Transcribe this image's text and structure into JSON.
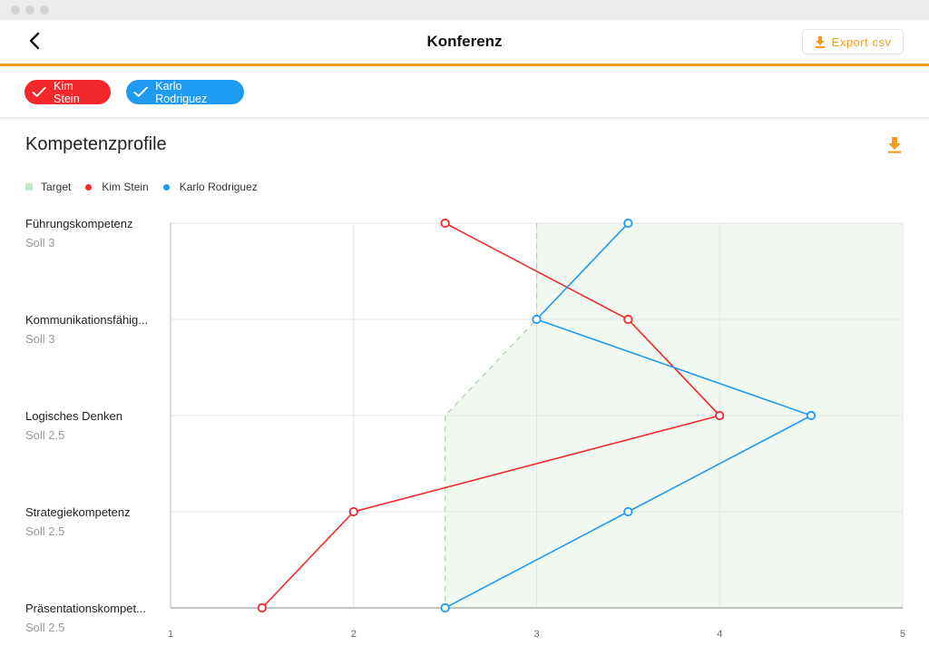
{
  "page": {
    "title": "Konferenz",
    "export_label": "Export csv"
  },
  "filters": [
    {
      "label": "Kim Stein",
      "color": "#f4282c"
    },
    {
      "label": "Karlo Rodriguez",
      "color": "#1e9af0"
    }
  ],
  "section": {
    "title": "Kompetenzprofile"
  },
  "legend": [
    {
      "label": "Target",
      "color": "#c3e6c7"
    },
    {
      "label": "Kim Stein",
      "color": "#f4282c"
    },
    {
      "label": "Karlo Rodriguez",
      "color": "#1e9af0"
    }
  ],
  "chart_data": {
    "type": "line",
    "orientation": "horizontal",
    "categories": [
      {
        "label": "Führungskompetenz",
        "sub": "Soll 3"
      },
      {
        "label": "Kommunikationsfähig...",
        "sub": "Soll 3"
      },
      {
        "label": "Logisches Denken",
        "sub": "Soll 2.5"
      },
      {
        "label": "Strategiekompetenz",
        "sub": "Soll 2.5"
      },
      {
        "label": "Präsentationskompet...",
        "sub": "Soll 2.5"
      }
    ],
    "xlim": [
      1,
      5
    ],
    "xticks": [
      "1",
      "2",
      "3",
      "4",
      "5"
    ],
    "target": [
      3,
      3,
      2.5,
      2.5,
      2.5
    ],
    "series": [
      {
        "name": "Kim Stein",
        "color": "#f4282c",
        "values": [
          2.5,
          3.5,
          4,
          2,
          1.5
        ]
      },
      {
        "name": "Karlo Rodriguez",
        "color": "#1e9af0",
        "values": [
          3.5,
          3,
          4.5,
          3.5,
          2.5
        ]
      }
    ],
    "grid": true,
    "legend_position": "top-left"
  }
}
